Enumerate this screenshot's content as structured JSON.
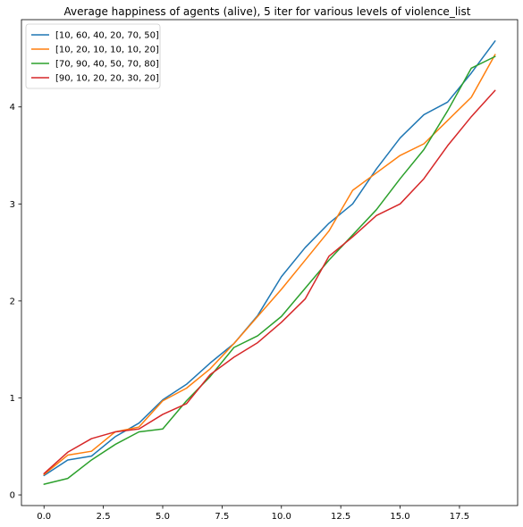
{
  "chart_data": {
    "type": "line",
    "title": "Average happiness of agents (alive), 5 iter for various levels of violence_list",
    "xlabel": "",
    "ylabel": "",
    "xlim": [
      -0.95,
      19.95
    ],
    "ylim": [
      -0.11,
      4.9
    ],
    "xticks": [
      0,
      2.5,
      5,
      7.5,
      10,
      12.5,
      15,
      17.5
    ],
    "xtick_labels": [
      "0.0",
      "2.5",
      "5.0",
      "7.5",
      "10.0",
      "12.5",
      "15.0",
      "17.5"
    ],
    "yticks": [
      0,
      1,
      2,
      3,
      4
    ],
    "ytick_labels": [
      "0",
      "1",
      "2",
      "3",
      "4"
    ],
    "grid": false,
    "legend_position": "top-left",
    "x": [
      0,
      1,
      2,
      3,
      4,
      5,
      6,
      7,
      8,
      9,
      10,
      11,
      12,
      13,
      14,
      15,
      16,
      17,
      18,
      19
    ],
    "series": [
      {
        "name": "[10, 60, 40, 20, 70, 50]",
        "color": "#1f77b4",
        "values": [
          0.2,
          0.36,
          0.4,
          0.6,
          0.74,
          0.98,
          1.14,
          1.36,
          1.56,
          1.85,
          2.25,
          2.55,
          2.8,
          3.0,
          3.36,
          3.68,
          3.92,
          4.05,
          4.35,
          4.68
        ]
      },
      {
        "name": "[10, 20, 10, 10, 10, 20]",
        "color": "#ff7f0e",
        "values": [
          0.21,
          0.41,
          0.45,
          0.65,
          0.7,
          0.97,
          1.1,
          1.3,
          1.56,
          1.84,
          2.12,
          2.42,
          2.72,
          3.14,
          3.32,
          3.5,
          3.62,
          3.86,
          4.1,
          4.54
        ]
      },
      {
        "name": "[70, 90, 40, 50, 70, 80]",
        "color": "#2ca02c",
        "values": [
          0.11,
          0.17,
          0.36,
          0.52,
          0.65,
          0.68,
          0.97,
          1.22,
          1.52,
          1.64,
          1.84,
          2.13,
          2.42,
          2.68,
          2.94,
          3.26,
          3.56,
          3.96,
          4.4,
          4.52
        ]
      },
      {
        "name": "[90, 10, 20, 20, 30, 20]",
        "color": "#d62728",
        "values": [
          0.22,
          0.44,
          0.58,
          0.65,
          0.68,
          0.83,
          0.94,
          1.24,
          1.42,
          1.57,
          1.78,
          2.02,
          2.46,
          2.66,
          2.88,
          3.0,
          3.26,
          3.6,
          3.9,
          4.17
        ]
      }
    ]
  }
}
